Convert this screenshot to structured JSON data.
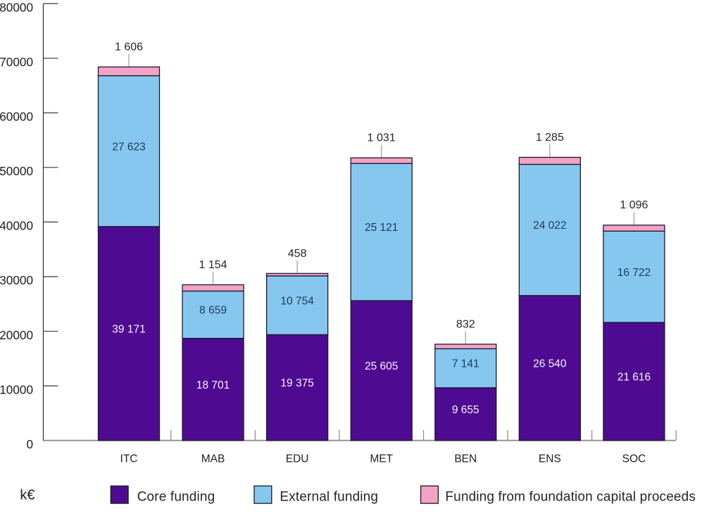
{
  "chart_data": {
    "type": "bar",
    "stacked": true,
    "title": "",
    "unit_label": "k€",
    "categories": [
      "ITC",
      "MAB",
      "EDU",
      "MET",
      "BEN",
      "ENS",
      "SOC"
    ],
    "series": [
      {
        "name": "Core funding",
        "color": "#4e0b91",
        "label_color": "#fbf1fa",
        "label_position": "inside",
        "values": [
          39171,
          18701,
          19375,
          25605,
          9655,
          26540,
          21616
        ],
        "labels": [
          "39 171",
          "18 701",
          "19 375",
          "25 605",
          "9 655",
          "26 540",
          "21 616"
        ]
      },
      {
        "name": "External funding",
        "color": "#86c7f0",
        "label_color": "#1c3a5a",
        "label_position": "inside",
        "values": [
          27623,
          8659,
          10754,
          25121,
          7141,
          24022,
          16722
        ],
        "labels": [
          "27 623",
          "8 659",
          "10 754",
          "25 121",
          "7 141",
          "24 022",
          "16 722"
        ]
      },
      {
        "name": "Funding from foundation capital proceeds",
        "color": "#f3a3c6",
        "label_color": "#262626",
        "label_position": "above",
        "values": [
          1606,
          1154,
          458,
          1031,
          832,
          1285,
          1096
        ],
        "labels": [
          "1 606",
          "1 154",
          "458",
          "1 031",
          "832",
          "1 285",
          "1 096"
        ]
      }
    ],
    "ylim": [
      0,
      80000
    ],
    "ytick_interval": 10000,
    "ytick_labels": [
      "0",
      "10000",
      "20000",
      "30000",
      "40000",
      "50000",
      "60000",
      "70000",
      "80000"
    ],
    "grid": false,
    "legend_position": "bottom",
    "bar_outline_color": "#1a1a2e",
    "number_format": "space-thousands"
  }
}
